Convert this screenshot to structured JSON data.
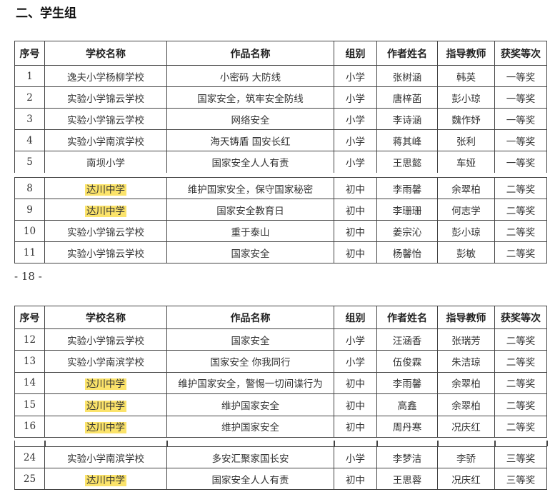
{
  "heading": "二、学生组",
  "page_number": "- 18 -",
  "highlight_color": "#fbe36a",
  "columns": [
    "序号",
    "学校名称",
    "作品名称",
    "组别",
    "作者姓名",
    "指导教师",
    "获奖等次"
  ],
  "highlighted_school": "达川中学",
  "tables": [
    {
      "header": true,
      "rows": [
        [
          "1",
          "逸夫小学杨柳学校",
          "小密码 大防线",
          "小学",
          "张树涵",
          "韩英",
          "一等奖"
        ],
        [
          "2",
          "实验小学锦云学校",
          "国家安全，筑牢安全防线",
          "小学",
          "唐梓菡",
          "彭小琼",
          "一等奖"
        ],
        [
          "3",
          "实验小学锦云学校",
          "网络安全",
          "小学",
          "李诗涵",
          "魏作妤",
          "一等奖"
        ],
        [
          "4",
          "实验小学南滨学校",
          "海天铸盾 国安长红",
          "小学",
          "蒋其峰",
          "张利",
          "一等奖"
        ],
        [
          "5",
          "南坝小学",
          "国家安全人人有责",
          "小学",
          "王思懿",
          "车娅",
          "一等奖"
        ]
      ]
    },
    {
      "header": false,
      "rows": [
        [
          "8",
          "达川中学",
          "维护国家安全，保守国家秘密",
          "初中",
          "李雨馨",
          "余翠柏",
          "二等奖"
        ],
        [
          "9",
          "达川中学",
          "国家安全教育日",
          "初中",
          "李珊珊",
          "何志学",
          "二等奖"
        ],
        [
          "10",
          "实验小学锦云学校",
          "重于泰山",
          "初中",
          "姜宗沁",
          "彭小琼",
          "二等奖"
        ],
        [
          "11",
          "实验小学锦云学校",
          "国家安全",
          "初中",
          "杨馨怡",
          "彭敏",
          "二等奖"
        ]
      ]
    },
    {
      "header": true,
      "rows": [
        [
          "12",
          "实验小学锦云学校",
          "国家安全",
          "小学",
          "汪涵香",
          "张瑞芳",
          "二等奖"
        ],
        [
          "13",
          "实验小学南滨学校",
          "国家安全 你我同行",
          "小学",
          "伍俊霖",
          "朱洁琼",
          "二等奖"
        ],
        [
          "14",
          "达川中学",
          "维护国家安全，警惕一切间谍行为",
          "初中",
          "李雨馨",
          "余翠柏",
          "二等奖"
        ],
        [
          "15",
          "达川中学",
          "维护国家安全",
          "初中",
          "高鑫",
          "余翠柏",
          "二等奖"
        ],
        [
          "16",
          "达川中学",
          "维护国家安全",
          "初中",
          "周丹寒",
          "况庆红",
          "二等奖"
        ]
      ]
    },
    {
      "header": false,
      "rows": [
        [
          "24",
          "实验小学南滨学校",
          "多安汇聚家国长安",
          "小学",
          "李梦洁",
          "李骄",
          "三等奖"
        ],
        [
          "25",
          "达川中学",
          "国家安全人人有责",
          "初中",
          "王思蓉",
          "况庆红",
          "三等奖"
        ]
      ]
    }
  ]
}
